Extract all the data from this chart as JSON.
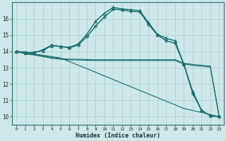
{
  "xlabel": "Humidex (Indice chaleur)",
  "xlim": [
    -0.5,
    23.5
  ],
  "ylim": [
    9.5,
    17.0
  ],
  "yticks": [
    10,
    11,
    12,
    13,
    14,
    15,
    16
  ],
  "xticks": [
    0,
    1,
    2,
    3,
    4,
    5,
    6,
    7,
    8,
    9,
    10,
    11,
    12,
    13,
    14,
    15,
    16,
    17,
    18,
    19,
    20,
    21,
    22,
    23
  ],
  "bg_color": "#cce8e8",
  "grid_color": "#aacfcf",
  "line_color": "#1a6b6b",
  "series": [
    {
      "x": [
        0,
        1,
        2,
        3,
        4,
        5,
        6,
        7,
        8,
        9,
        10,
        11,
        12,
        13,
        14,
        15,
        16,
        17,
        18,
        19,
        20,
        21,
        22,
        23
      ],
      "y": [
        14.0,
        13.9,
        13.95,
        14.05,
        14.35,
        14.3,
        14.25,
        14.45,
        15.05,
        15.85,
        16.35,
        16.7,
        16.6,
        16.55,
        16.5,
        15.75,
        15.05,
        14.8,
        14.65,
        13.2,
        11.55,
        10.4,
        10.05,
        10.0
      ],
      "marker": "^",
      "marker_size": 3,
      "lw": 1.0,
      "filled": false
    },
    {
      "x": [
        0,
        1,
        2,
        3,
        4,
        5,
        6,
        7,
        8,
        9,
        10,
        11,
        12,
        13,
        14,
        15,
        16,
        17,
        18,
        19,
        20,
        21,
        22,
        23
      ],
      "y": [
        14.0,
        13.95,
        13.9,
        14.1,
        14.38,
        14.3,
        14.22,
        14.38,
        14.9,
        15.55,
        16.12,
        16.58,
        16.55,
        16.45,
        16.43,
        15.65,
        15.0,
        14.65,
        14.5,
        13.2,
        11.42,
        10.38,
        10.05,
        10.0
      ],
      "marker": "D",
      "marker_size": 2,
      "lw": 1.0,
      "filled": false
    },
    {
      "x": [
        0,
        1,
        2,
        3,
        4,
        5,
        6,
        7,
        8,
        9,
        10,
        11,
        12,
        13,
        14,
        15,
        16,
        17,
        18,
        19,
        20,
        21,
        22,
        23
      ],
      "y": [
        14.0,
        13.88,
        13.82,
        13.72,
        13.62,
        13.56,
        13.52,
        13.52,
        13.5,
        13.49,
        13.49,
        13.49,
        13.49,
        13.49,
        13.49,
        13.49,
        13.49,
        13.49,
        13.49,
        13.28,
        13.2,
        13.15,
        13.1,
        10.0
      ],
      "marker": null,
      "marker_size": 0,
      "lw": 0.8,
      "filled": false
    },
    {
      "x": [
        0,
        1,
        2,
        3,
        4,
        5,
        6,
        7,
        8,
        9,
        10,
        11,
        12,
        13,
        14,
        15,
        16,
        17,
        18,
        19,
        20,
        21,
        22,
        23
      ],
      "y": [
        14.0,
        13.85,
        13.78,
        13.68,
        13.58,
        13.52,
        13.48,
        13.47,
        13.45,
        13.44,
        13.44,
        13.44,
        13.44,
        13.44,
        13.44,
        13.44,
        13.44,
        13.44,
        13.44,
        13.22,
        13.14,
        13.09,
        13.04,
        10.0
      ],
      "marker": null,
      "marker_size": 0,
      "lw": 0.8,
      "filled": false
    },
    {
      "x": [
        0,
        5,
        19,
        23
      ],
      "y": [
        14.0,
        13.6,
        10.5,
        10.0
      ],
      "marker": null,
      "marker_size": 0,
      "lw": 0.8,
      "filled": false
    }
  ]
}
